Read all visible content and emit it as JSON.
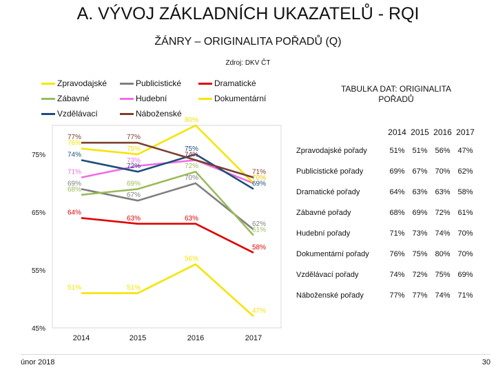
{
  "header": {
    "title": "A. VÝVOJ ZÁKLADNÍCH UKAZATELŮ - RQI",
    "subtitle": "ŽÁNRY – ORIGINALITA POŘADŮ (Q)",
    "source": "Zdroj: DKV ČT"
  },
  "table": {
    "title": "TABULKA DAT: ORIGINALITA POŘADŮ",
    "header": [
      "2014",
      "2015",
      "2016",
      "2017"
    ],
    "rows": [
      {
        "label": "Zpravodajské pořady",
        "values": [
          "51%",
          "51%",
          "56%",
          "47%"
        ]
      },
      {
        "label": "Publicistické pořady",
        "values": [
          "69%",
          "67%",
          "70%",
          "62%"
        ]
      },
      {
        "label": "Dramatické pořady",
        "values": [
          "64%",
          "63%",
          "63%",
          "58%"
        ]
      },
      {
        "label": "Zábavné pořady",
        "values": [
          "68%",
          "69%",
          "72%",
          "61%"
        ]
      },
      {
        "label": "Hudební pořady",
        "values": [
          "71%",
          "73%",
          "74%",
          "70%"
        ]
      },
      {
        "label": "Dokumentární pořady",
        "values": [
          "76%",
          "75%",
          "80%",
          "70%"
        ]
      },
      {
        "label": "Vzdělávací pořady",
        "values": [
          "74%",
          "72%",
          "75%",
          "69%"
        ]
      },
      {
        "label": "Náboženské pořady",
        "values": [
          "77%",
          "77%",
          "74%",
          "71%"
        ]
      }
    ]
  },
  "footer": {
    "date": "únor 2018",
    "page": "30"
  },
  "chart_data": {
    "type": "line",
    "categories": [
      "2014",
      "2015",
      "2016",
      "2017"
    ],
    "ylim": [
      45,
      80
    ],
    "yticks": [
      45,
      55,
      65,
      75
    ],
    "ytick_labels": [
      "45%",
      "55%",
      "65%",
      "75%"
    ],
    "grid": false,
    "legend_position": "top",
    "series": [
      {
        "name": "Zpravodajské",
        "color": "#F5E400",
        "values": [
          51,
          51,
          56,
          47
        ]
      },
      {
        "name": "Publicistické",
        "color": "#7F7F7F",
        "values": [
          69,
          67,
          70,
          62
        ]
      },
      {
        "name": "Dramatické",
        "color": "#E00000",
        "values": [
          64,
          63,
          63,
          58
        ]
      },
      {
        "name": "Zábavné",
        "color": "#9BBB59",
        "values": [
          68,
          69,
          72,
          61
        ]
      },
      {
        "name": "Hudební",
        "color": "#F06EE6",
        "values": [
          71,
          73,
          74,
          70
        ]
      },
      {
        "name": "Dokumentární",
        "color": "#F5E400",
        "values": [
          76,
          75,
          80,
          70
        ]
      },
      {
        "name": "Vzdělávací",
        "color": "#1F4E79",
        "values": [
          74,
          72,
          75,
          69
        ]
      },
      {
        "name": "Náboženské",
        "color": "#7B3F2F",
        "values": [
          77,
          77,
          74,
          71
        ]
      }
    ]
  }
}
